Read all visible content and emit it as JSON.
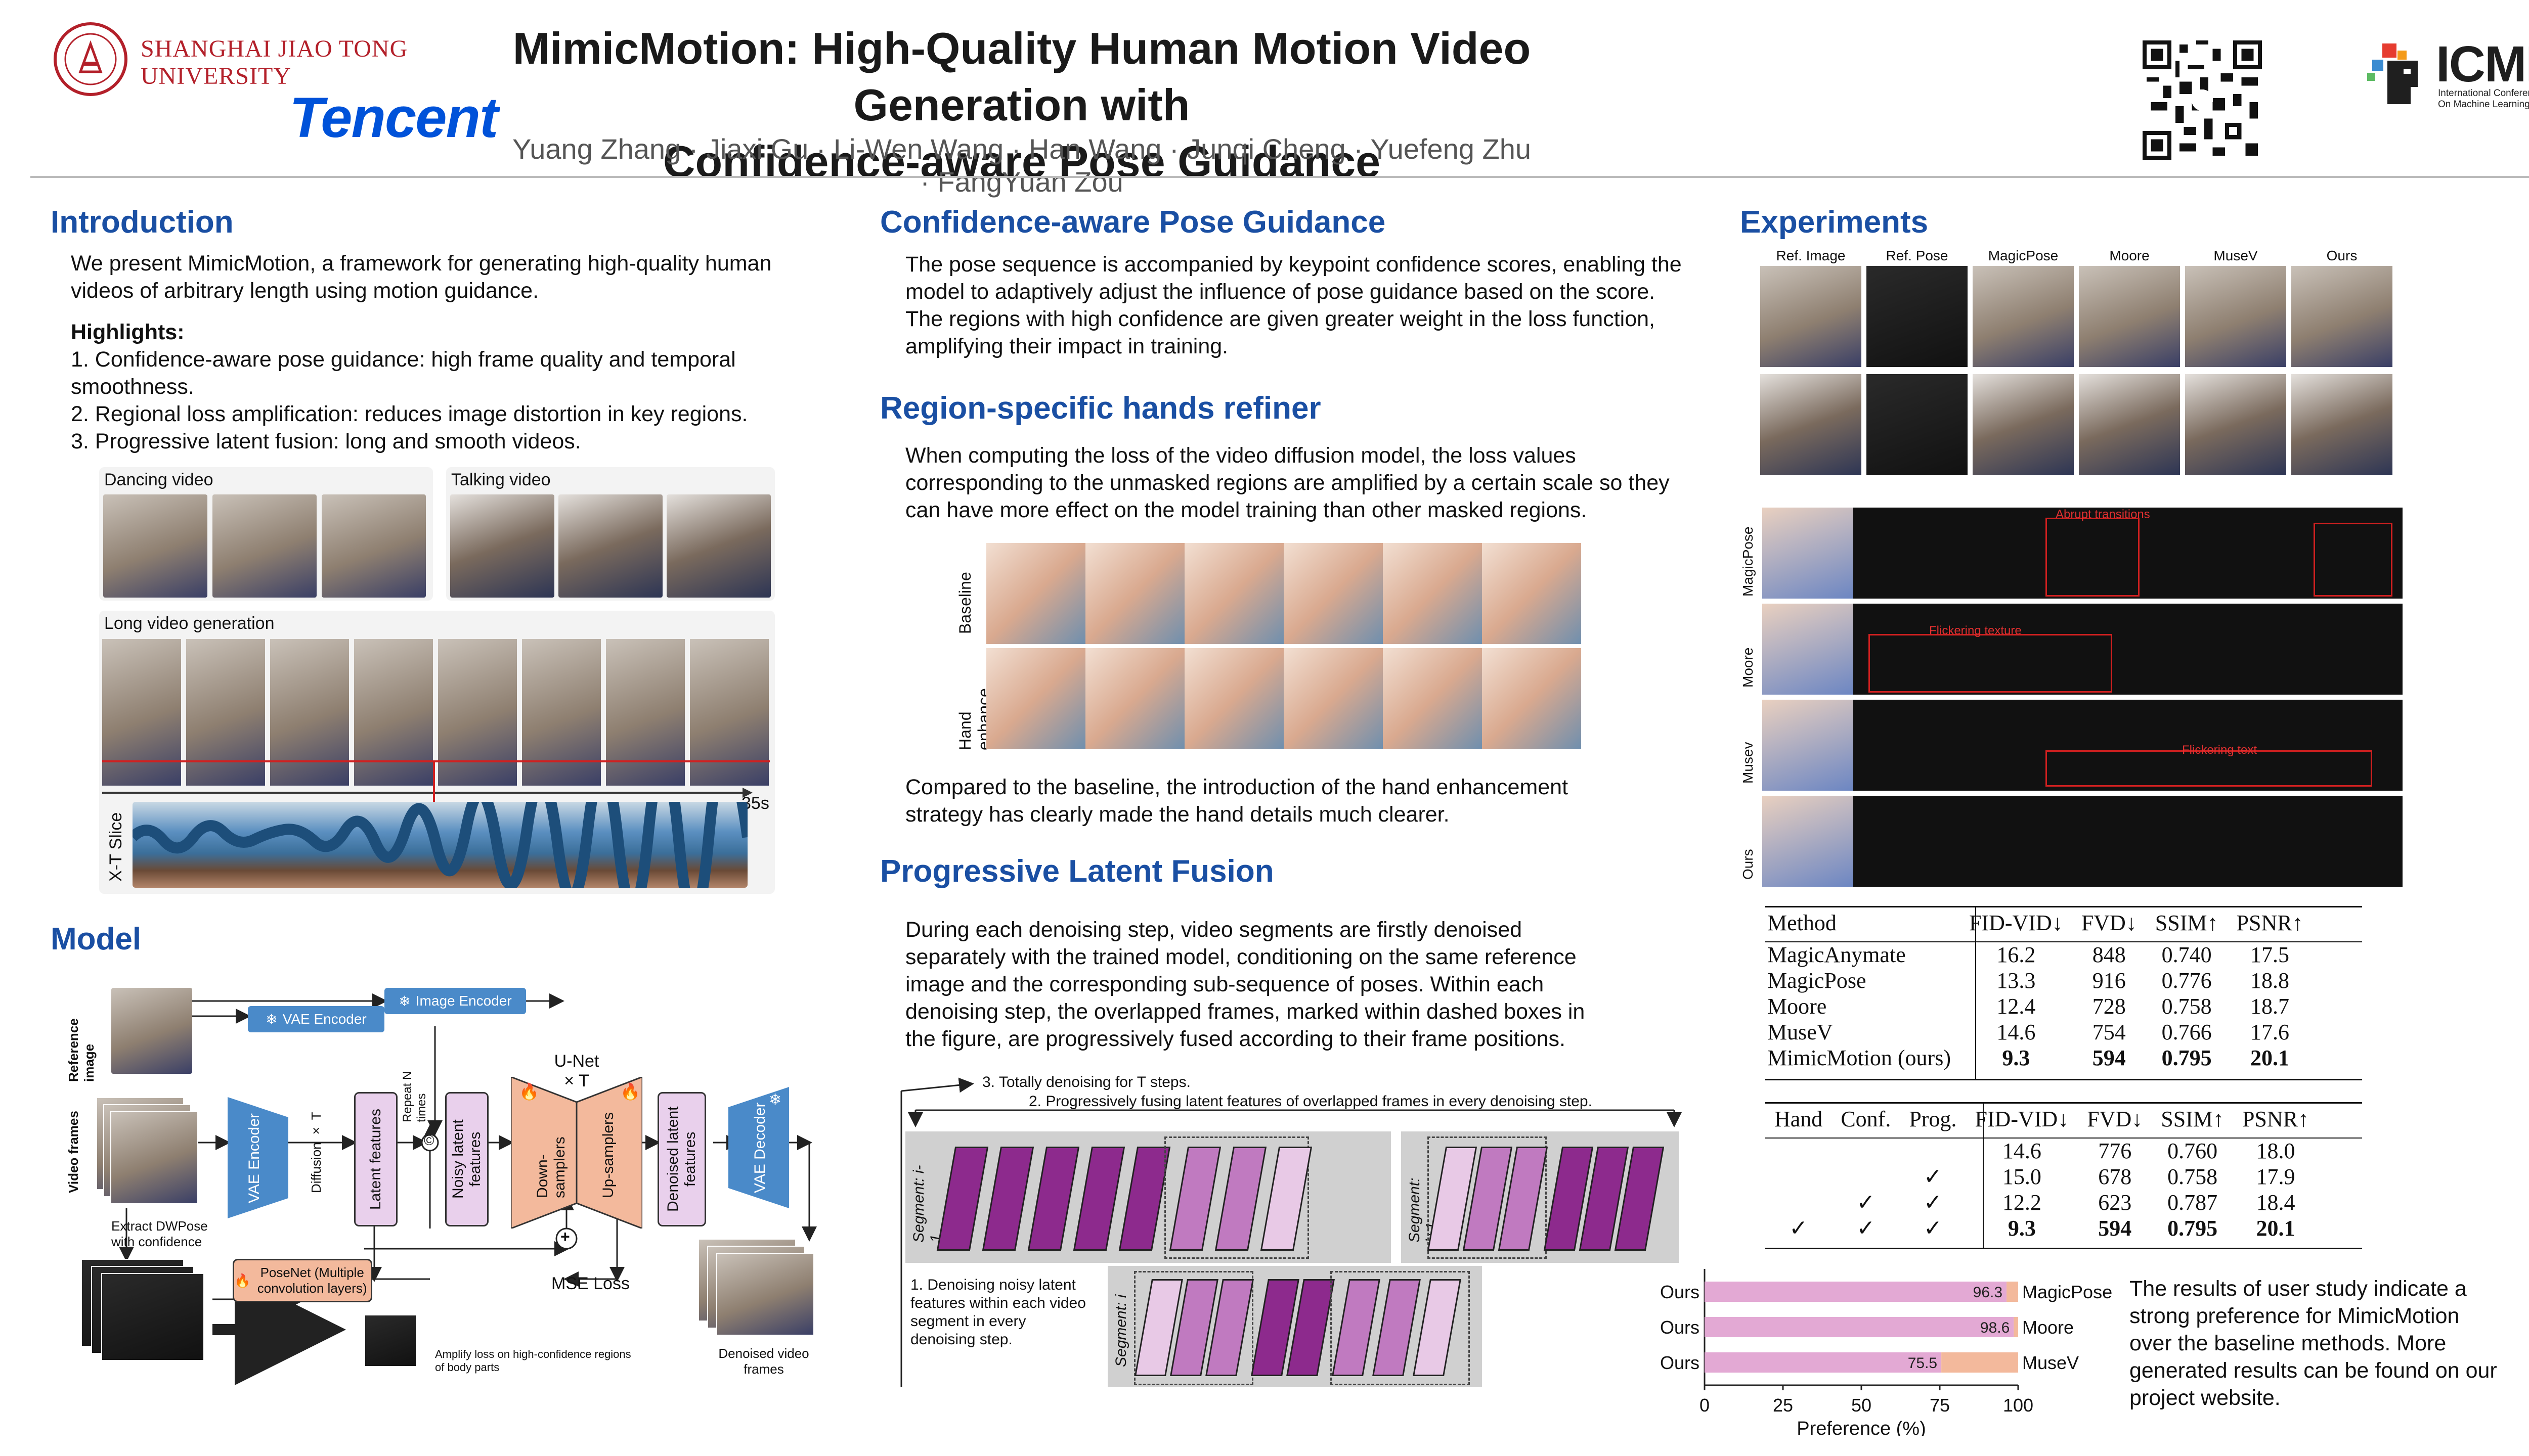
{
  "header": {
    "title_line1": "MimicMotion: High-Quality Human Motion Video Generation with",
    "title_line2": "Confidence-aware Pose Guidance",
    "authors": "Yuang Zhang · Jiaxi Gu · Li-Wen Wang · Han Wang · Junqi Cheng · Yuefeng Zhu · FangYuan Zou",
    "sjtu_line1": "Shanghai Jiao Tong",
    "sjtu_line2": "University",
    "tencent": "Tencent",
    "icml_big": "ICML",
    "icml_line1": "International Conference",
    "icml_line2": "On Machine Learning"
  },
  "introduction": {
    "heading": "Introduction",
    "p1": [
      "We present MimicMotion, a framework for generating high-quality human",
      "videos of arbitrary length using motion guidance."
    ],
    "highlights_label": "Highlights:",
    "highlights": [
      "1. Confidence-aware pose guidance: high frame quality and temporal",
      "smoothness.",
      "2. Regional loss amplification: reduces image distortion in key regions.",
      "3. Progressive latent fusion: long and smooth videos."
    ],
    "dancing_label": "Dancing video",
    "talking_label": "Talking video",
    "long_label": "Long video generation",
    "xt_label": "X-T Slice",
    "time_label": "35s"
  },
  "model": {
    "heading": "Model",
    "reference_image": "Reference image",
    "video_frames": "Video frames",
    "vae_encoder": "VAE Encoder",
    "image_encoder": "Image Encoder",
    "vae_encoder_v": "VAE Encoder",
    "diffusion": "Diffusion × T",
    "repeat": "Repeat N times",
    "latent_features": "Latent features",
    "noisy_latent": "Noisy latent features",
    "unet": "U-Net",
    "unet_times": "× T",
    "down": "Down-samplers",
    "up": "Up-samplers",
    "denoised_latent": "Denoised latent features",
    "vae_decoder": "VAE Decoder",
    "extract": "Extract DWPose with confidence",
    "posenet": "PoseNet (Multiple convolution layers)",
    "mse": "MSE Loss",
    "amplify": "Amplify loss on high-confidence regions of body parts",
    "denoised_frames": "Denoised video frames",
    "concat_symbol": "©",
    "plus_symbol": "+"
  },
  "pose_guidance": {
    "heading": "Confidence-aware Pose Guidance",
    "text": [
      "The pose sequence is accompanied by keypoint confidence scores, enabling the",
      "model to adaptively adjust the influence of pose guidance based on the score.",
      "The regions with high confidence are given greater weight in the loss function,",
      "amplifying their impact in training."
    ]
  },
  "hands": {
    "heading": "Region-specific hands refiner",
    "text": [
      "When computing the loss of the video diffusion model, the loss values",
      "corresponding to the unmasked regions are amplified by a certain scale so they",
      "can have more effect on the model training than other masked regions."
    ],
    "row1_label": "Baseline",
    "row2_label": "Hand enhance",
    "text2": [
      "Compared to the baseline, the introduction of the hand enhancement",
      "strategy has clearly made the hand details much clearer."
    ]
  },
  "fusion": {
    "heading": "Progressive Latent Fusion",
    "text": [
      "During each denoising step, video segments are firstly denoised",
      "separately with the trained model, conditioning on the same reference",
      "image and the corresponding sub-sequence of poses. Within each",
      "denoising step, the overlapped frames, marked within dashed boxes in",
      "the figure, are progressively fused according to their frame positions."
    ],
    "step3": "3. Totally denoising for T steps.",
    "step2": "2. Progressively fusing latent features of overlapped frames in every denoising step.",
    "step1": [
      "1. Denoising noisy latent",
      "features within each video",
      "segment in every",
      "denoising step."
    ],
    "seg_prev": "Segment: i-1",
    "seg_next": "Segment: i+1",
    "seg_cur": "Segment: i"
  },
  "experiments": {
    "heading": "Experiments",
    "col_labels": [
      "Ref. Image",
      "Ref. Pose",
      "MagicPose",
      "Moore",
      "MuseV",
      "Ours"
    ],
    "row_labels": [
      "MagicPose",
      "Moore",
      "Musev",
      "Ours"
    ],
    "annotations": [
      "Abrupt transitions",
      "Flickering texture",
      "Flickering text"
    ],
    "table1": {
      "headers": [
        "Method",
        "FID-VID↓",
        "FVD↓",
        "SSIM↑",
        "PSNR↑"
      ],
      "rows": [
        [
          "MagicAnymate",
          "16.2",
          "848",
          "0.740",
          "17.5"
        ],
        [
          "MagicPose",
          "13.3",
          "916",
          "0.776",
          "18.8"
        ],
        [
          "Moore",
          "12.4",
          "728",
          "0.758",
          "18.7"
        ],
        [
          "MuseV",
          "14.6",
          "754",
          "0.766",
          "17.6"
        ],
        [
          "MimicMotion (ours)",
          "9.3",
          "594",
          "0.795",
          "20.1"
        ]
      ]
    },
    "table2": {
      "headers": [
        "Hand",
        "Conf.",
        "Prog.",
        "FID-VID↓",
        "FVD↓",
        "SSIM↑",
        "PSNR↑"
      ],
      "rows": [
        [
          "",
          "",
          "",
          "14.6",
          "776",
          "0.760",
          "18.0"
        ],
        [
          "",
          "",
          "✓",
          "15.0",
          "678",
          "0.758",
          "17.9"
        ],
        [
          "",
          "✓",
          "✓",
          "12.2",
          "623",
          "0.787",
          "18.4"
        ],
        [
          "✓",
          "✓",
          "✓",
          "9.3",
          "594",
          "0.795",
          "20.1"
        ]
      ]
    },
    "user_study_text": [
      "The results of user study indicate a",
      "strong preference for MimicMotion",
      "over the baseline methods. More",
      "generated results can be found on our",
      "project website."
    ]
  },
  "chart_data": {
    "type": "bar",
    "orientation": "horizontal",
    "stacked": true,
    "categories": [
      "MagicPose",
      "Moore",
      "MuseV"
    ],
    "left_labels": [
      "Ours",
      "Ours",
      "Ours"
    ],
    "series": [
      {
        "name": "Ours",
        "values": [
          96.3,
          98.6,
          75.5
        ]
      },
      {
        "values": [
          3.7,
          1.4,
          24.5
        ]
      }
    ],
    "xlabel": "Preference (%)",
    "xlim": [
      0,
      100
    ],
    "xticks": [
      0,
      25,
      50,
      75,
      100
    ],
    "colors": [
      "#e3a9d4",
      "#f3b99c"
    ]
  }
}
